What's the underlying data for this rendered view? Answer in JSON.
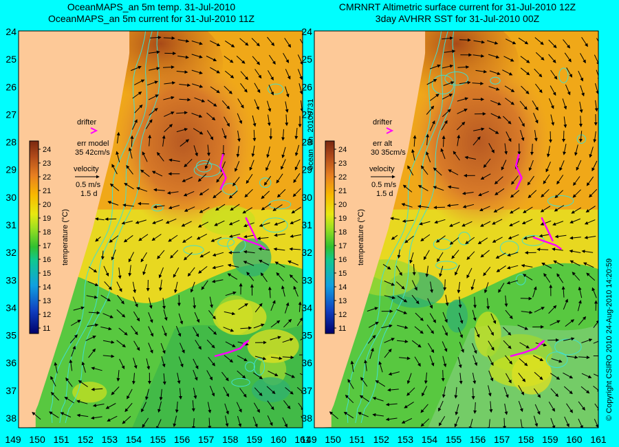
{
  "panels": [
    {
      "title_line1": "OceanMAPS_an 5m temp. 31-Jul-2010",
      "title_line2": "OceanMAPS_an 5m current for 31-Jul-2010 11Z",
      "drifter_label": "drifter",
      "err_label": "err model",
      "err_value": "35 42cm/s",
      "velocity_label": "velocity",
      "velocity_scale": "0.5 m/s",
      "velocity_time": "1.5 d"
    },
    {
      "title_line1": "CMRNRT Altimetric surface current for 31-Jul-2010 12Z",
      "title_line2": "3day AVHRR SST for 31-Jul-2010 00Z",
      "drifter_label": "drifter",
      "err_label": "err alt",
      "err_value": "30 35cm/s",
      "velocity_label": "velocity",
      "velocity_scale": "0.5 m/s",
      "velocity_time": "1.5 d"
    }
  ],
  "colorbar": {
    "label": "temperature (°C)",
    "ticks": [
      "24",
      "23",
      "22",
      "21",
      "20",
      "19",
      "18",
      "17",
      "16",
      "15",
      "14",
      "13",
      "12",
      "11"
    ]
  },
  "lat_ticks": [
    "24",
    "25",
    "26",
    "27",
    "28",
    "29",
    "30",
    "31",
    "32",
    "33",
    "34",
    "35",
    "36",
    "37",
    "38"
  ],
  "lon_ticks": [
    "149",
    "150",
    "151",
    "152",
    "153",
    "154",
    "155",
    "156",
    "157",
    "158",
    "159",
    "160",
    "161"
  ],
  "run_label": "ocean_an_20100731",
  "copyright": "© Copyright CSIRO 2010   24-Aug-2010 14:20:59",
  "colors": {
    "frame": "#00fefe",
    "land": "#fdc998",
    "drifter": "#ff00ff",
    "contour": "#40e0d0"
  },
  "map_data": {
    "lon_range": [
      149,
      161
    ],
    "lat_range": [
      24,
      38
    ],
    "lat_axis": "increasing downward (degrees south)"
  }
}
